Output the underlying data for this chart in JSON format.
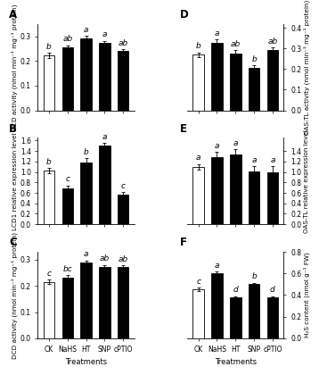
{
  "categories": [
    "CK",
    "NaHS",
    "HT",
    "SNP",
    "cPTIO"
  ],
  "panels": {
    "A": {
      "label": "A",
      "ylabel": "LCD activity (nmol min⁻¹ mg⁻¹ protein)",
      "values": [
        0.222,
        0.255,
        0.292,
        0.272,
        0.24
      ],
      "errors": [
        0.01,
        0.008,
        0.01,
        0.01,
        0.008
      ],
      "sig": [
        "b",
        "ab",
        "a",
        "a",
        "ab"
      ],
      "ylim": [
        0.0,
        0.35
      ],
      "yticks": [
        0.0,
        0.1,
        0.2,
        0.3
      ],
      "ytick_labels": [
        "0.0",
        "0.1",
        "0.2",
        "0.3"
      ],
      "bar_colors": [
        "white",
        "black",
        "black",
        "black",
        "black"
      ],
      "side": "left"
    },
    "B": {
      "label": "B",
      "ylabel": "LCD1 relative expression level",
      "values": [
        1.02,
        0.68,
        1.18,
        1.5,
        0.57
      ],
      "errors": [
        0.05,
        0.06,
        0.08,
        0.05,
        0.04
      ],
      "sig": [
        "b",
        "c",
        "b",
        "a",
        "c"
      ],
      "ylim": [
        0.0,
        1.65
      ],
      "yticks": [
        0.0,
        0.2,
        0.4,
        0.6,
        0.8,
        1.0,
        1.2,
        1.4,
        1.6
      ],
      "ytick_labels": [
        "0.0",
        "0.2",
        "0.4",
        "0.6",
        "0.8",
        "1.0",
        "1.2",
        "1.4",
        "1.6"
      ],
      "bar_colors": [
        "white",
        "black",
        "black",
        "black",
        "black"
      ],
      "side": "left"
    },
    "C": {
      "label": "C",
      "ylabel": "DCD activity (nmol min⁻¹ mg⁻¹ protein)",
      "values": [
        0.215,
        0.233,
        0.289,
        0.273,
        0.271
      ],
      "errors": [
        0.008,
        0.007,
        0.008,
        0.007,
        0.008
      ],
      "sig": [
        "c",
        "bc",
        "a",
        "ab",
        "ab"
      ],
      "ylim": [
        0.0,
        0.33
      ],
      "yticks": [
        0.0,
        0.1,
        0.2,
        0.3
      ],
      "ytick_labels": [
        "0.0",
        "0.1",
        "0.2",
        "0.3"
      ],
      "bar_colors": [
        "white",
        "black",
        "black",
        "black",
        "black"
      ],
      "side": "left"
    },
    "D": {
      "label": "D",
      "ylabel": "OAS-TL activity (nmol min⁻¹ mg⁻¹ protein)",
      "values": [
        0.27,
        0.33,
        0.278,
        0.208,
        0.295
      ],
      "errors": [
        0.012,
        0.015,
        0.015,
        0.01,
        0.01
      ],
      "sig": [
        "b",
        "a",
        "ab",
        "b",
        "ab"
      ],
      "ylim": [
        0.0,
        0.42
      ],
      "yticks": [
        0.0,
        0.1,
        0.2,
        0.3,
        0.4
      ],
      "ytick_labels": [
        "0.0",
        "0.1",
        "0.2",
        "0.3",
        "0.4"
      ],
      "bar_colors": [
        "white",
        "black",
        "black",
        "black",
        "black"
      ],
      "side": "right"
    },
    "E": {
      "label": "E",
      "ylabel": "OAS-TL relative expression level",
      "values": [
        1.1,
        1.28,
        1.33,
        1.01,
        0.99
      ],
      "errors": [
        0.05,
        0.1,
        0.1,
        0.1,
        0.12
      ],
      "sig": [
        "a",
        "a",
        "a",
        "a",
        "a"
      ],
      "ylim": [
        0.0,
        1.65
      ],
      "yticks": [
        0.0,
        0.2,
        0.4,
        0.6,
        0.8,
        1.0,
        1.2,
        1.4
      ],
      "ytick_labels": [
        "0.0",
        "0.2",
        "0.4",
        "0.6",
        "0.8",
        "1.0",
        "1.2",
        "1.4"
      ],
      "bar_colors": [
        "white",
        "black",
        "black",
        "black",
        "black"
      ],
      "side": "right"
    },
    "F": {
      "label": "F",
      "ylabel": "H₂S content (nmol g⁻¹ FW)",
      "values": [
        0.455,
        0.6,
        0.38,
        0.5,
        0.38
      ],
      "errors": [
        0.015,
        0.018,
        0.01,
        0.015,
        0.01
      ],
      "sig": [
        "c",
        "a",
        "d",
        "b",
        "d"
      ],
      "ylim": [
        0.0,
        0.8
      ],
      "yticks": [
        0.0,
        0.2,
        0.4,
        0.6,
        0.8
      ],
      "ytick_labels": [
        "0.0",
        "0.2",
        "0.4",
        "0.6",
        "0.8"
      ],
      "bar_colors": [
        "white",
        "black",
        "black",
        "black",
        "black"
      ],
      "side": "right"
    }
  },
  "xlabel": "Treatments",
  "bar_width": 0.6,
  "sig_fontsize": 6.5,
  "axis_label_fontsize": 6.0,
  "tick_fontsize": 5.5,
  "panel_label_fontsize": 8.5,
  "ylabel_fontsize": 5.2
}
